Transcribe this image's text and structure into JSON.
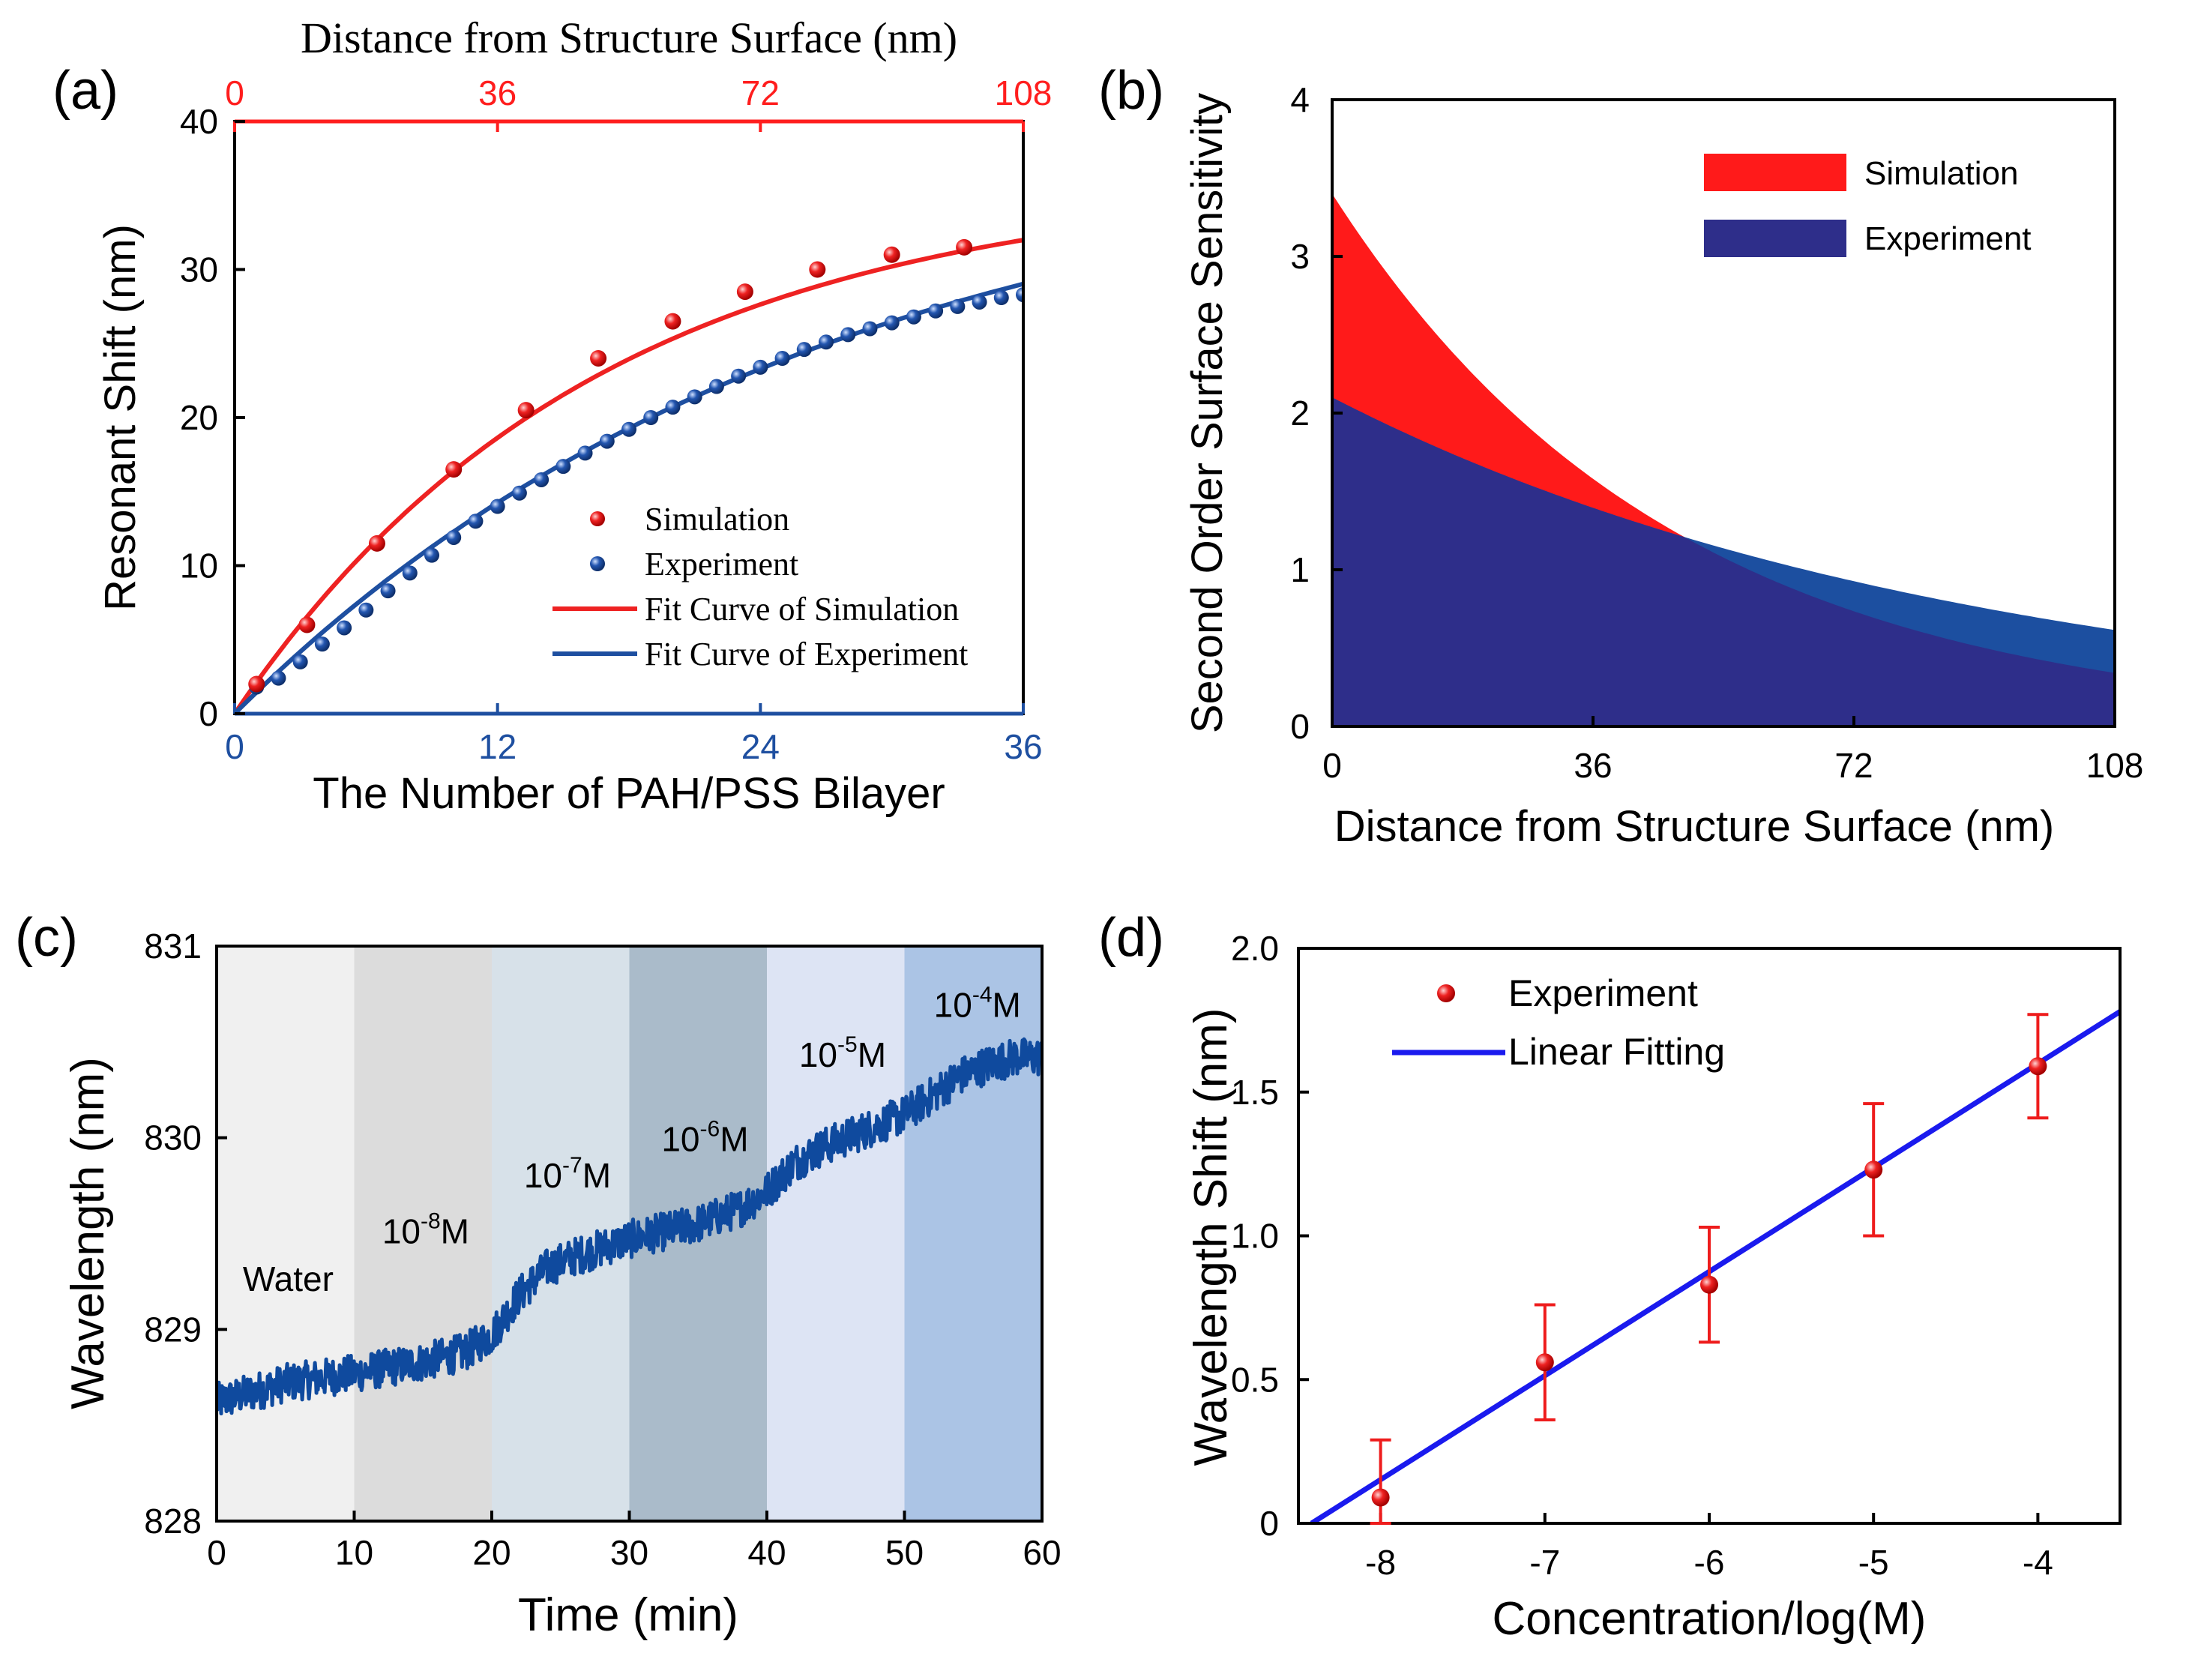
{
  "chart_data": [
    {
      "panel": "a",
      "panel_label": "(a)",
      "type": "scatter",
      "xlabel": "The Number of PAH/PSS Bilayer",
      "xlabel_top": "Distance from Structure Surface (nm)",
      "ylabel": "Resonant Shift (nm)",
      "xlim": [
        0,
        36
      ],
      "ylim": [
        0,
        40
      ],
      "xticks": [
        "0",
        "12",
        "24",
        "36"
      ],
      "xticks_top": [
        "0",
        "36",
        "72",
        "108"
      ],
      "yticks": [
        "0",
        "10",
        "20",
        "30",
        "40"
      ],
      "colors": {
        "simulation": "#ee2222",
        "experiment": "#1e4fa0",
        "top_axis": "#ff1e1e",
        "bottom_axis": "#1e4fa0"
      },
      "legend": [
        "Simulation",
        "Experiment",
        "Fit Curve of Simulation",
        "Fit Curve of Experiment"
      ],
      "series": [
        {
          "name": "Simulation",
          "x": [
            1,
            3.3,
            6.5,
            10,
            13.3,
            16.6,
            20,
            23.3,
            26.6,
            30,
            33.3
          ],
          "y": [
            2,
            6,
            11.5,
            16.5,
            20.5,
            24,
            26.5,
            28.5,
            30,
            31,
            31.5
          ]
        },
        {
          "name": "Experiment",
          "x": [
            1,
            2,
            3,
            4,
            5,
            6,
            7,
            8,
            9,
            10,
            11,
            12,
            13,
            14,
            15,
            16,
            17,
            18,
            19,
            20,
            21,
            22,
            23,
            24,
            25,
            26,
            27,
            28,
            29,
            30,
            31,
            32,
            33,
            34,
            35,
            36
          ],
          "y": [
            1.8,
            2.4,
            3.5,
            4.7,
            5.8,
            7.0,
            8.3,
            9.5,
            10.7,
            11.9,
            13.0,
            14.0,
            14.9,
            15.8,
            16.7,
            17.6,
            18.4,
            19.2,
            20.0,
            20.7,
            21.4,
            22.1,
            22.8,
            23.4,
            24.0,
            24.6,
            25.1,
            25.6,
            26.0,
            26.4,
            26.8,
            27.2,
            27.5,
            27.8,
            28.1,
            28.3
          ]
        },
        {
          "name": "Fit Curve of Simulation",
          "fit": "exp",
          "A": 36.06,
          "t": 16.5
        },
        {
          "name": "Fit Curve of Experiment",
          "fit": "exp",
          "A": 39.0,
          "t": 26.4
        }
      ]
    },
    {
      "panel": "b",
      "panel_label": "(b)",
      "type": "area",
      "xlabel": "Distance from Structure Surface (nm)",
      "ylabel": "Second Order Surface Sensitivity",
      "xlim": [
        0,
        108
      ],
      "ylim": [
        0,
        4
      ],
      "xticks": [
        "0",
        "36",
        "72",
        "108"
      ],
      "yticks": [
        "0",
        "1",
        "2",
        "3",
        "4"
      ],
      "legend": [
        "Simulation",
        "Experiment"
      ],
      "series": [
        {
          "name": "Simulation",
          "color": "#ff1a1a",
          "fit": "exp",
          "A": 3.4,
          "t": 47
        },
        {
          "name": "Experiment",
          "color": "#2e2e8a",
          "fit": "exp",
          "A": 2.1,
          "t": 88
        }
      ],
      "band_color": "#1c4fa0"
    },
    {
      "panel": "c",
      "panel_label": "(c)",
      "type": "line",
      "xlabel": "Time (min)",
      "ylabel": "Wavelength (nm)",
      "xlim": [
        0,
        60
      ],
      "ylim": [
        828,
        831
      ],
      "xticks": [
        "0",
        "10",
        "20",
        "30",
        "40",
        "50",
        "60"
      ],
      "yticks": [
        "828",
        "829",
        "830",
        "831"
      ],
      "line_color": "#0f4a9e",
      "regions": [
        {
          "label": "Water",
          "exp": "",
          "unit": "",
          "x0": 0,
          "x1": 10,
          "color": "#f0f0f0",
          "label_x": 5.2,
          "label_y": 829.2
        },
        {
          "label": "10",
          "exp": "-8",
          "unit": "M",
          "x0": 10,
          "x1": 20,
          "color": "#dcdcdc",
          "label_x": 15.2,
          "label_y": 829.45
        },
        {
          "label": "10",
          "exp": "-7",
          "unit": "M",
          "x0": 20,
          "x1": 30,
          "color": "#d7e1e9",
          "label_x": 25.5,
          "label_y": 829.74
        },
        {
          "label": "10",
          "exp": "-6",
          "unit": "M",
          "x0": 30,
          "x1": 40,
          "color": "#aabbca",
          "label_x": 35.5,
          "label_y": 829.93
        },
        {
          "label": "10",
          "exp": "-5",
          "unit": "M",
          "x0": 40,
          "x1": 50,
          "color": "#dde4f4",
          "label_x": 45.5,
          "label_y": 830.37
        },
        {
          "label": "10",
          "exp": "-4",
          "unit": "M",
          "x0": 50,
          "x1": 60,
          "color": "#abc4e5",
          "label_x": 55.3,
          "label_y": 830.63
        }
      ],
      "series": [
        {
          "name": "Wavelength",
          "x": [
            0,
            5,
            10,
            15,
            18,
            20,
            22,
            24,
            26,
            30,
            35,
            38,
            40,
            42,
            44,
            50,
            54,
            56,
            58,
            60
          ],
          "y": [
            828.62,
            828.72,
            828.77,
            828.83,
            828.88,
            828.97,
            829.18,
            829.32,
            829.38,
            829.47,
            829.55,
            829.63,
            829.72,
            829.87,
            829.95,
            830.12,
            830.32,
            830.38,
            830.42,
            830.42
          ]
        }
      ]
    },
    {
      "panel": "d",
      "panel_label": "(d)",
      "type": "scatter",
      "xlabel": "Concentration/log(M)",
      "ylabel": "Wavelength Shift (nm)",
      "xlim": [
        -8.5,
        -3.5
      ],
      "ylim": [
        0,
        2.0
      ],
      "xticks": [
        "-8",
        "-7",
        "-6",
        "-5",
        "-4"
      ],
      "yticks": [
        "0",
        "0.5",
        "1.0",
        "1.5",
        "2.0"
      ],
      "legend": [
        "Experiment",
        "Linear Fitting"
      ],
      "colors": {
        "points": "#ee1c1c",
        "fit": "#1a1aee"
      },
      "series": [
        {
          "name": "Experiment",
          "x": [
            -8,
            -7,
            -6,
            -5,
            -4
          ],
          "y": [
            0.09,
            0.56,
            0.83,
            1.23,
            1.59
          ],
          "yerr": [
            0.2,
            0.2,
            0.2,
            0.23,
            0.18
          ]
        },
        {
          "name": "Linear Fitting",
          "x": [
            -8.42,
            -3.5
          ],
          "y": [
            0,
            1.78
          ]
        }
      ]
    }
  ]
}
